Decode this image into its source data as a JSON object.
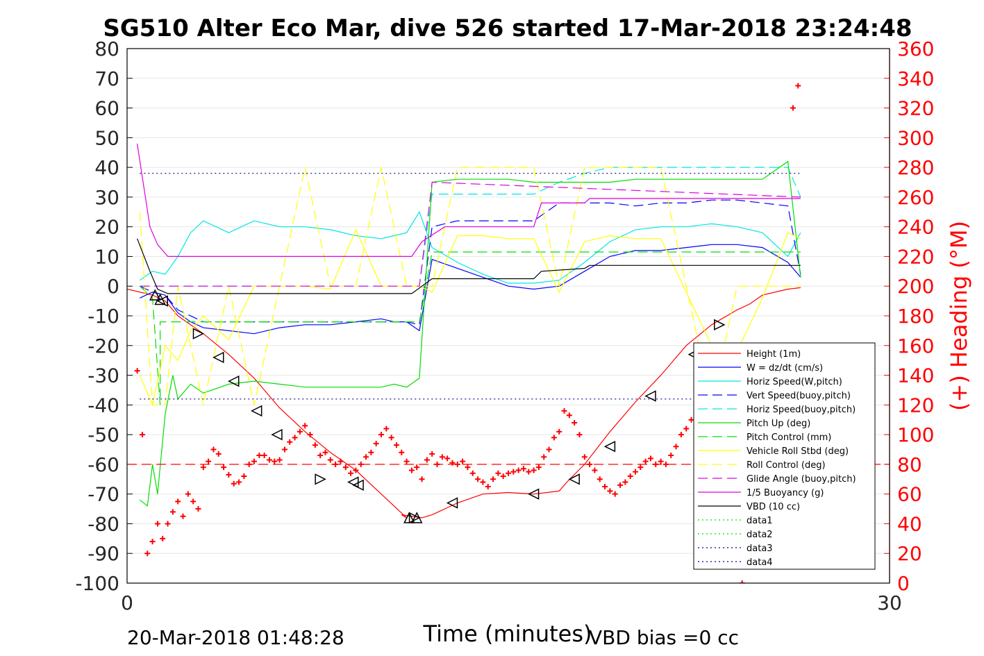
{
  "chart_data": {
    "type": "line",
    "title": "SG510 Alter Eco Mar, dive 526 started 17-Mar-2018 23:24:48",
    "xlabel": "Time (minutes)",
    "ylabel_right": "(+) Heading (°M)",
    "xlim": [
      0,
      30
    ],
    "ylim": [
      -100,
      80
    ],
    "ylim_right": [
      0,
      360
    ],
    "x_ticks": [
      "0",
      "30"
    ],
    "y_ticks": [
      "80",
      "70",
      "60",
      "50",
      "40",
      "30",
      "20",
      "10",
      "0",
      "-10",
      "-20",
      "-30",
      "-40",
      "-50",
      "-60",
      "-70",
      "-80",
      "-90",
      "-100"
    ],
    "y_ticks_right": [
      "360",
      "340",
      "320",
      "300",
      "280",
      "260",
      "240",
      "220",
      "200",
      "180",
      "160",
      "140",
      "120",
      "100",
      "80",
      "60",
      "40",
      "20",
      "0"
    ],
    "footer_left": "20-Mar-2018 01:48:28",
    "footer_right": "VBD bias =0 cc",
    "legend_position": "bottom-right",
    "colors": {
      "red": "#ff0000",
      "blue": "#0000ff",
      "cyan": "#00e5e5",
      "green": "#00dd00",
      "yellow": "#ffff00",
      "magenta": "#dd00dd",
      "black": "#000000"
    },
    "series": [
      {
        "name": "Height (1m)",
        "color": "#ff0000",
        "style": "solid",
        "x": [
          0,
          1,
          1.5,
          2,
          3,
          4,
          5,
          6,
          7,
          8,
          9,
          10,
          11,
          10.8,
          11.6,
          12,
          13,
          14,
          15,
          16,
          17,
          17.3,
          18,
          19,
          20,
          21,
          22,
          23,
          24,
          24.5,
          25,
          26,
          26.5
        ],
        "y": [
          -1,
          -3,
          -5,
          -10,
          -16,
          -23,
          -31,
          -41,
          -49,
          -56,
          -62,
          -70,
          -78,
          -77,
          -78,
          -77,
          -73,
          -70,
          -69.5,
          -70,
          -69,
          -66,
          -60,
          -49,
          -39,
          -30,
          -20,
          -13,
          -8,
          -6,
          -3,
          -1,
          -0.5
        ]
      },
      {
        "name": "W = dz/dt (cm/s)",
        "color": "#0000ff",
        "style": "solid",
        "x": [
          0.5,
          1,
          1.5,
          2,
          2.5,
          3,
          4,
          5,
          6,
          7,
          8,
          9,
          10,
          10.5,
          11,
          11.5,
          12,
          13,
          14,
          15,
          16,
          17,
          18,
          19,
          20,
          21,
          22,
          23,
          24,
          25,
          26,
          26.5
        ],
        "y": [
          -4,
          -2,
          -3,
          -9,
          -12,
          -14,
          -15,
          -16,
          -14,
          -13,
          -13,
          -12,
          -11,
          -12,
          -12,
          -15,
          9,
          6,
          3,
          0,
          -1,
          0,
          5,
          10,
          12,
          12,
          13,
          14,
          14,
          13,
          8,
          3
        ]
      },
      {
        "name": "Horiz Speed(W,pitch)",
        "color": "#00e5e5",
        "style": "solid",
        "x": [
          0.5,
          1,
          1.5,
          2,
          2.5,
          3,
          4,
          5,
          6,
          7,
          8,
          9,
          10,
          10.5,
          11,
          11.5,
          12,
          13,
          14,
          15,
          16,
          17,
          18,
          19,
          20,
          21,
          22,
          23,
          24,
          25,
          26,
          26.5
        ],
        "y": [
          2,
          5,
          4,
          10,
          18,
          22,
          18,
          22,
          20,
          20,
          19,
          17,
          16,
          17,
          18,
          25,
          13,
          8,
          4,
          1,
          1,
          2,
          8,
          15,
          19,
          20,
          20,
          21,
          20,
          18,
          10,
          18
        ]
      },
      {
        "name": "Vert Speed(buoy,pitch)",
        "color": "#0000ff",
        "style": "dashed",
        "x": [
          0.5,
          1,
          1.5,
          2,
          3,
          4,
          5,
          6,
          7,
          8,
          9,
          10,
          10.5,
          11,
          11.5,
          12,
          13,
          14,
          15,
          16,
          17,
          18,
          19,
          20,
          21,
          22,
          23,
          24,
          25,
          26,
          26.5
        ],
        "y": [
          0,
          -2,
          -3,
          -8,
          -12,
          -12,
          -12,
          -12,
          -12,
          -12,
          -12,
          -12,
          -12,
          -12,
          -13,
          20,
          22,
          22,
          22,
          22,
          28,
          28,
          28,
          27,
          28,
          28,
          29,
          29,
          28,
          27,
          4
        ]
      },
      {
        "name": "Horiz Speed(buoy,pitch)",
        "color": "#00e5e5",
        "style": "dashed",
        "x": [
          0.5,
          2,
          11.5,
          12,
          16,
          17,
          18,
          19,
          20,
          21,
          22,
          23,
          24,
          25,
          26,
          26.5
        ],
        "y": [
          0,
          0,
          0,
          31,
          31,
          35,
          38,
          40,
          40,
          40,
          40,
          40,
          40,
          40,
          40,
          30
        ]
      },
      {
        "name": "Pitch Up (deg)",
        "color": "#00dd00",
        "style": "solid",
        "x": [
          0.5,
          0.8,
          1,
          1.2,
          1.5,
          1.8,
          2,
          2.5,
          3,
          4,
          5,
          6,
          7,
          8,
          9,
          10,
          10.5,
          11,
          11.5,
          12,
          13,
          14,
          15,
          16,
          17,
          18,
          19,
          20,
          21,
          22,
          23,
          24,
          25,
          26,
          26.5
        ],
        "y": [
          -72,
          -74,
          -60,
          -70,
          -43,
          -30,
          -38,
          -33,
          -36,
          -33,
          -32,
          -33,
          -34,
          -34,
          -34,
          -34,
          -33,
          -34,
          -31,
          35,
          36,
          36,
          36,
          35,
          35,
          35,
          35,
          36,
          36,
          36,
          36,
          36,
          36,
          42,
          3
        ]
      },
      {
        "name": "Pitch Control (mm)",
        "color": "#00dd00",
        "style": "dashed",
        "x": [
          0.5,
          1,
          1.3,
          1.3,
          11.5,
          12,
          26.5
        ],
        "y": [
          0,
          -4,
          -40,
          -12,
          -12,
          11.5,
          11.5
        ]
      },
      {
        "name": "Vehicle Roll Stbd (deg)",
        "color": "#ffff00",
        "style": "solid",
        "x": [
          0.5,
          1,
          1.5,
          2,
          2.5,
          3,
          4,
          5,
          6,
          7,
          8,
          9,
          10,
          11,
          11.5,
          12,
          13,
          14,
          15,
          16,
          17,
          18,
          19,
          20,
          21,
          22,
          23,
          24,
          25,
          26,
          26.5
        ],
        "y": [
          -30,
          -40,
          -20,
          -25,
          -15,
          -10,
          -18,
          0,
          0,
          0,
          -1,
          19,
          0,
          0,
          0,
          -2,
          17,
          17,
          16,
          16,
          -2,
          15,
          17,
          16,
          16,
          -2,
          -20,
          -22,
          -4,
          18,
          16
        ]
      },
      {
        "name": "Roll Control (deg)",
        "color": "#ffff00",
        "style": "dashed",
        "x": [
          0.5,
          1,
          1.5,
          2,
          3,
          4,
          5,
          6,
          7,
          8,
          9,
          10,
          11,
          12,
          13,
          14,
          15,
          16,
          17,
          18,
          19,
          20,
          21,
          22,
          23,
          24,
          25,
          26,
          26.5
        ],
        "y": [
          25,
          -40,
          -40,
          0,
          -40,
          0,
          -40,
          0,
          40,
          0,
          0,
          40,
          0,
          0,
          40,
          40,
          40,
          40,
          0,
          40,
          40,
          40,
          40,
          0,
          -40,
          0,
          0,
          0,
          0
        ]
      },
      {
        "name": "Glide Angle (buoy,pitch)",
        "color": "#dd00dd",
        "style": "dashed",
        "x": [
          0.5,
          11.5,
          12,
          26.5
        ],
        "y": [
          0,
          0,
          35,
          30
        ]
      },
      {
        "name": "1/5 Buoyancy (g)",
        "color": "#dd00dd",
        "style": "solid",
        "x": [
          0.4,
          0.9,
          1.2,
          1.6,
          11.2,
          11.6,
          12.5,
          16,
          16.3,
          18,
          18.2,
          26.5
        ],
        "y": [
          48,
          20,
          14,
          10,
          10,
          15,
          20,
          20,
          28,
          28,
          29.5,
          29.5
        ]
      },
      {
        "name": "VBD (10 cc)",
        "color": "#000000",
        "style": "solid",
        "x": [
          0.4,
          0.9,
          1.2,
          1.6,
          11.2,
          11.6,
          12,
          16,
          16.3,
          18,
          18.2,
          26.5
        ],
        "y": [
          16,
          5,
          -1,
          -2.5,
          -2.5,
          0,
          2.5,
          2.5,
          5,
          6,
          7,
          7
        ]
      },
      {
        "name": "data1",
        "color": "#00dd00",
        "style": "dotted",
        "x": [],
        "y": []
      },
      {
        "name": "data2",
        "color": "#00dd00",
        "style": "dotted",
        "x": [],
        "y": []
      },
      {
        "name": "data3",
        "color": "#000088",
        "style": "dotted",
        "x": [
          0.5,
          26.5
        ],
        "y": [
          38,
          38
        ]
      },
      {
        "name": "data4",
        "color": "#000088",
        "style": "dotted",
        "x": [
          0.5,
          26.5
        ],
        "y": [
          -38,
          -38
        ]
      }
    ],
    "heading_series": {
      "axis": "right",
      "color": "#ff0000",
      "marker": "+",
      "x": [
        0.4,
        0.6,
        0.8,
        1,
        1.2,
        1.4,
        1.6,
        1.8,
        2,
        2.2,
        2.4,
        2.6,
        2.8,
        3,
        3.2,
        3.4,
        3.6,
        3.8,
        4,
        4.2,
        4.4,
        4.6,
        4.8,
        5,
        5.2,
        5.4,
        5.6,
        5.8,
        6,
        6.2,
        6.4,
        6.6,
        6.8,
        7,
        7.2,
        7.4,
        7.6,
        7.8,
        8,
        8.2,
        8.4,
        8.6,
        8.8,
        9,
        9.2,
        9.4,
        9.6,
        9.8,
        10,
        10.2,
        10.4,
        10.6,
        10.8,
        11,
        11.2,
        11.4,
        11.6,
        11.8,
        12,
        12.2,
        12.4,
        12.6,
        12.8,
        13,
        13.2,
        13.4,
        13.6,
        13.8,
        14,
        14.2,
        14.4,
        14.6,
        14.8,
        15,
        15.2,
        15.4,
        15.6,
        15.8,
        16,
        16.2,
        16.4,
        16.6,
        16.8,
        17,
        17.2,
        17.4,
        17.6,
        17.8,
        18,
        18.2,
        18.4,
        18.6,
        18.8,
        19,
        19.2,
        19.4,
        19.6,
        19.8,
        20,
        20.2,
        20.4,
        20.6,
        20.8,
        21,
        21.2,
        21.4,
        21.6,
        21.8,
        22,
        22.2,
        22.4,
        22.6,
        22.8,
        23,
        23.2,
        23.4,
        23.6,
        23.8,
        24,
        24.2,
        24.4,
        24.6,
        24.8,
        25,
        25.2,
        25.4,
        25.6,
        25.8,
        26,
        26.2,
        26.4
      ],
      "y": [
        143,
        100,
        20,
        28,
        40,
        30,
        40,
        48,
        55,
        45,
        60,
        55,
        50,
        78,
        82,
        90,
        87,
        78,
        73,
        67,
        68,
        72,
        80,
        82,
        86,
        86,
        83,
        82,
        83,
        90,
        95,
        98,
        102,
        106,
        100,
        93,
        86,
        88,
        83,
        80,
        82,
        78,
        74,
        76,
        80,
        85,
        88,
        94,
        100,
        104,
        98,
        93,
        88,
        82,
        76,
        78,
        70,
        83,
        87,
        80,
        85,
        84,
        81,
        80,
        82,
        78,
        74,
        70,
        68,
        65,
        70,
        74,
        72,
        74,
        75,
        76,
        77,
        75,
        76,
        78,
        85,
        90,
        98,
        102,
        116,
        113,
        108,
        100,
        85,
        80,
        76,
        70,
        65,
        62,
        60,
        66,
        68,
        72,
        75,
        78,
        82,
        84,
        80,
        82,
        80,
        86,
        92,
        100,
        104,
        110,
        118,
        112,
        108,
        116,
        118,
        114,
        108,
        85,
        80,
        0,
        68,
        75,
        82,
        85,
        90,
        95,
        100,
        105,
        110,
        320,
        335
      ]
    },
    "reference_line_right": {
      "value": 80,
      "color": "#ff0000",
      "style": "dashed"
    },
    "markers": {
      "color": "#000000",
      "x": [
        1.1,
        1.3,
        1.4,
        2.8,
        3.6,
        4.2,
        5.1,
        5.9,
        7.6,
        8.9,
        9.1,
        11.1,
        11.4,
        11.3,
        12.8,
        16.0,
        17.6,
        19.0,
        20.6,
        22.3,
        23.3
      ],
      "y": [
        -3,
        -4.5,
        -5,
        -16,
        -24,
        -32,
        -42,
        -50,
        -65,
        -66,
        -67,
        -78,
        -78,
        -78,
        -73,
        -70,
        -65,
        -54,
        -37,
        -23,
        -13
      ],
      "symbols": [
        "up",
        "up",
        "left",
        "right",
        "left",
        "left",
        "left",
        "left",
        "right",
        "left",
        "left",
        "up",
        "up",
        "right",
        "left",
        "left",
        "left",
        "left",
        "left",
        "left",
        "right"
      ]
    }
  }
}
